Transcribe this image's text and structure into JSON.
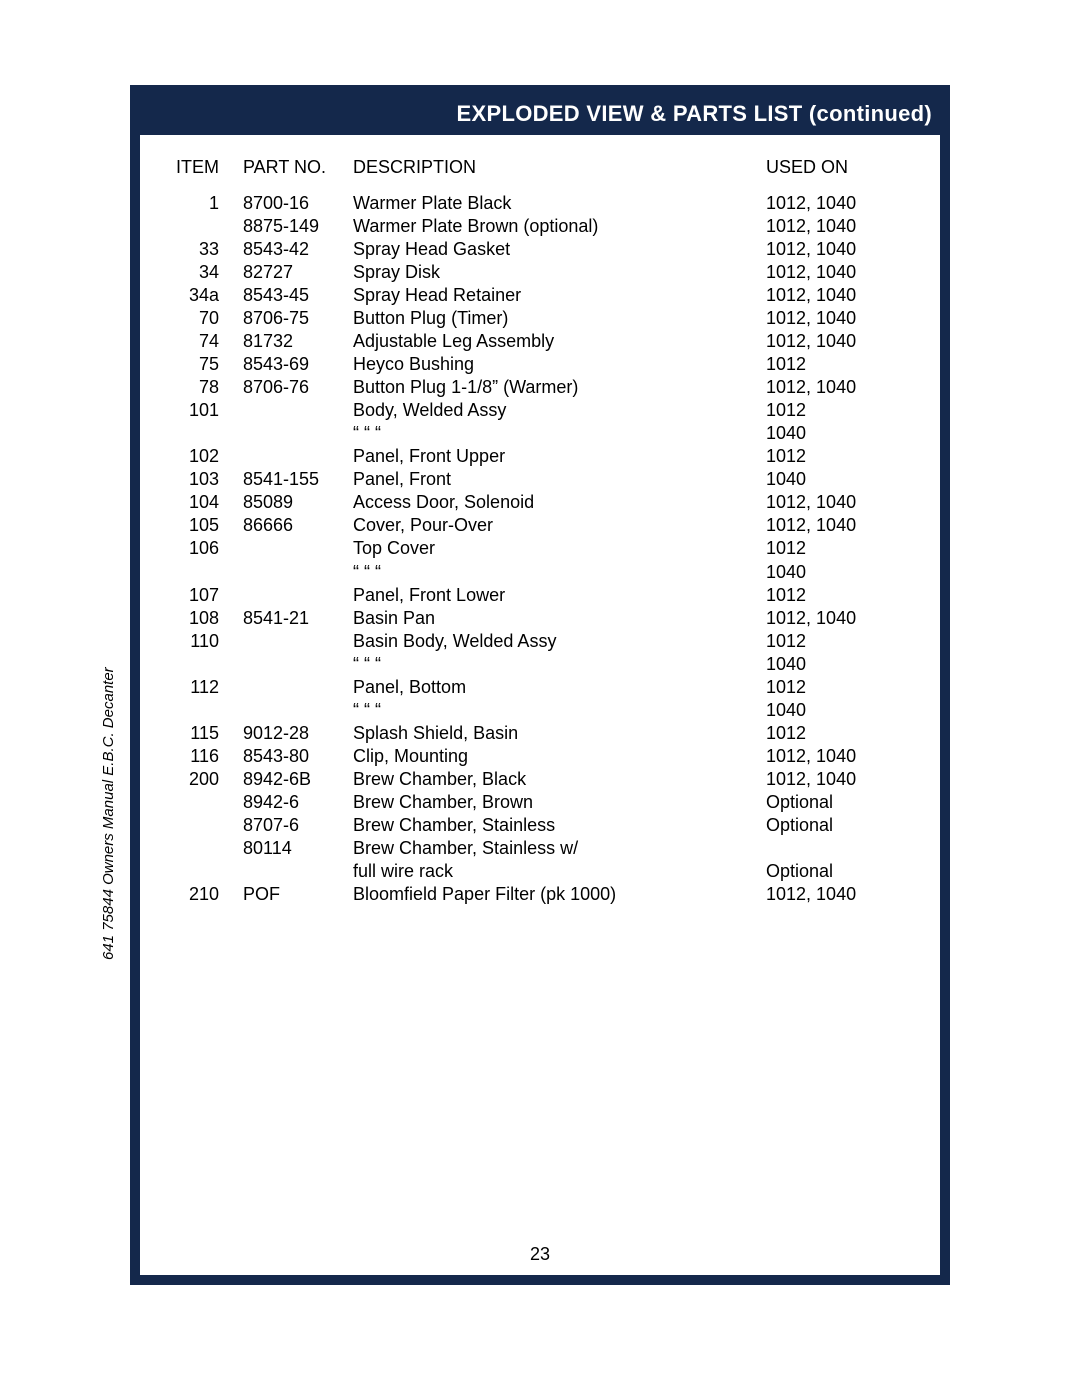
{
  "document": {
    "title": "EXPLODED VIEW & PARTS LIST (continued)",
    "page_number": "23",
    "side_label": "641 75844   Owners Manual E.B.C. Decanter",
    "colors": {
      "frame": "#14284b",
      "titlebar_bg": "#14284b",
      "titlebar_text": "#ffffff",
      "page_bg": "#ffffff",
      "text": "#000000"
    },
    "table": {
      "headers": {
        "item": "ITEM",
        "part": "PART NO.",
        "desc": "DESCRIPTION",
        "used": "USED ON"
      },
      "rows": [
        {
          "item": "1",
          "part": "8700-16",
          "desc": "Warmer Plate Black",
          "used": "1012, 1040"
        },
        {
          "item": "",
          "part": "8875-149",
          "desc": "Warmer Plate Brown (optional)",
          "used": "1012, 1040"
        },
        {
          "item": "33",
          "part": "8543-42",
          "desc": "Spray Head Gasket",
          "used": "1012, 1040"
        },
        {
          "item": "34",
          "part": "82727",
          "desc": "Spray Disk",
          "used": "1012, 1040"
        },
        {
          "item": "34a",
          "part": "8543-45",
          "desc": "Spray Head Retainer",
          "used": "1012, 1040"
        },
        {
          "item": "70",
          "part": "8706-75",
          "desc": "Button Plug (Timer)",
          "used": "1012, 1040"
        },
        {
          "item": "74",
          "part": "81732",
          "desc": "Adjustable Leg Assembly",
          "used": "1012, 1040"
        },
        {
          "item": "75",
          "part": "8543-69",
          "desc": "Heyco Bushing",
          "used": "1012"
        },
        {
          "item": "78",
          "part": "8706-76",
          "desc": "Button Plug 1-1/8” (Warmer)",
          "used": "1012, 1040"
        },
        {
          "item": "101",
          "part": "",
          "desc": "Body, Welded Assy",
          "used": "1012"
        },
        {
          "item": "",
          "part": "",
          "desc": "     “        “       “",
          "used": "1040"
        },
        {
          "item": "102",
          "part": "",
          "desc": "Panel, Front Upper",
          "used": "1012"
        },
        {
          "item": "103",
          "part": "8541-155",
          "desc": "Panel, Front",
          "used": "1040"
        },
        {
          "item": "104",
          "part": "85089",
          "desc": "Access Door, Solenoid",
          "used": "1012, 1040"
        },
        {
          "item": "105",
          "part": "86666",
          "desc": "Cover, Pour-Over",
          "used": "1012, 1040"
        },
        {
          "item": "106",
          "part": "",
          "desc": "Top Cover",
          "used": "1012"
        },
        {
          "item": "",
          "part": "",
          "desc": "     “        “       “",
          "used": "1040"
        },
        {
          "item": "107",
          "part": "",
          "desc": "Panel, Front Lower",
          "used": "1012"
        },
        {
          "item": "108",
          "part": "8541-21",
          "desc": "Basin Pan",
          "used": "1012, 1040"
        },
        {
          "item": "110",
          "part": "",
          "desc": "Basin Body, Welded Assy",
          "used": "1012"
        },
        {
          "item": "",
          "part": "",
          "desc": "     “        “       “",
          "used": "1040"
        },
        {
          "item": "112",
          "part": "",
          "desc": "Panel, Bottom",
          "used": "1012"
        },
        {
          "item": "",
          "part": "",
          "desc": "     “        “       “",
          "used": "1040"
        },
        {
          "item": "115",
          "part": "9012-28",
          "desc": "Splash Shield, Basin",
          "used": "1012"
        },
        {
          "item": "116",
          "part": "8543-80",
          "desc": "Clip, Mounting",
          "used": "1012, 1040"
        },
        {
          "item": "200",
          "part": "8942-6B",
          "desc": "Brew Chamber, Black",
          "used": "1012, 1040"
        },
        {
          "item": "",
          "part": "8942-6",
          "desc": "Brew Chamber, Brown",
          "used": "Optional"
        },
        {
          "item": "",
          "part": "8707-6",
          "desc": "Brew Chamber, Stainless",
          "used": "Optional"
        },
        {
          "item": "",
          "part": "80114",
          "desc": "Brew Chamber, Stainless w/",
          "used": ""
        },
        {
          "item": "",
          "part": "",
          "desc": "full wire rack",
          "used": "Optional"
        },
        {
          "item": "210",
          "part": "POF",
          "desc": "Bloomfield Paper Filter (pk 1000)",
          "used": "1012, 1040"
        }
      ]
    }
  }
}
